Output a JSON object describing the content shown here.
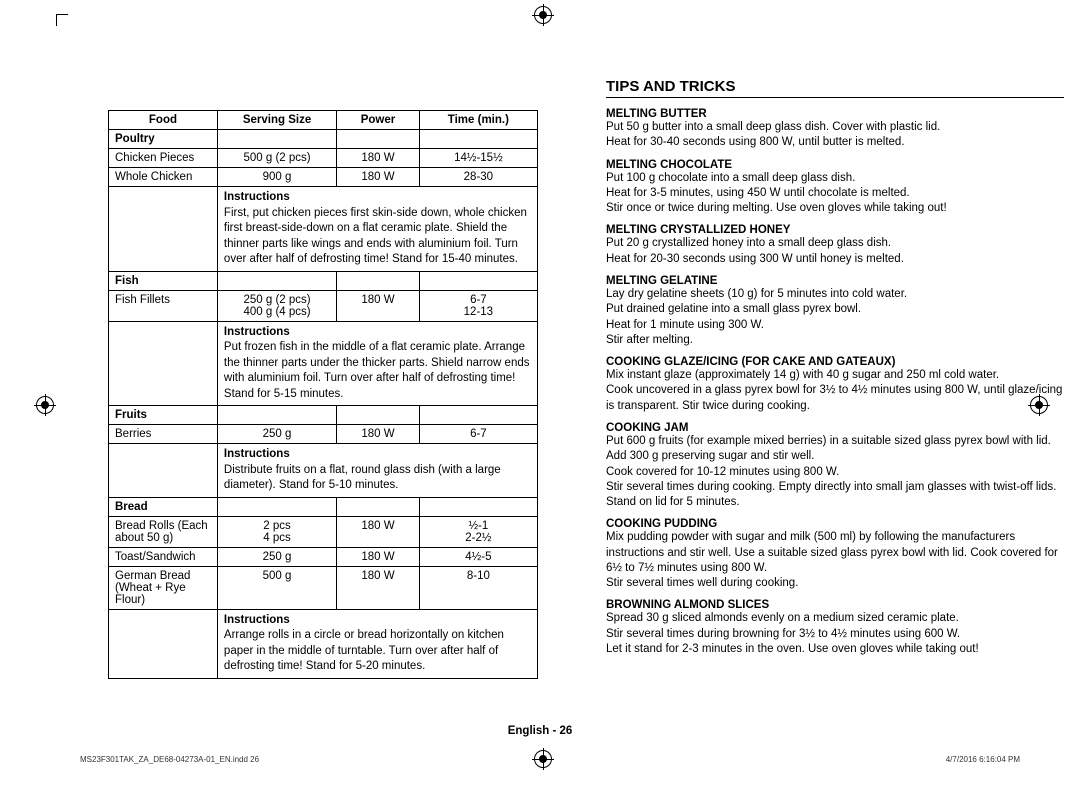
{
  "table": {
    "headers": [
      "Food",
      "Serving Size",
      "Power",
      "Time (min.)"
    ],
    "sections": [
      {
        "category": "Poultry",
        "rows": [
          {
            "food": "Chicken Pieces",
            "size": "500 g (2 pcs)",
            "power": "180 W",
            "time": "14½-15½"
          },
          {
            "food": "Whole Chicken",
            "size": "900 g",
            "power": "180 W",
            "time": "28-30"
          }
        ],
        "instructions_label": "Instructions",
        "instructions": "First, put chicken pieces first skin-side down, whole chicken first breast-side-down on a flat ceramic plate. Shield the thinner parts like wings and ends with aluminium foil. Turn over after half of defrosting time! Stand for 15-40 minutes."
      },
      {
        "category": "Fish",
        "rows": [
          {
            "food": "Fish Fillets",
            "size": "250 g (2 pcs)\n400 g (4 pcs)",
            "power": "180 W",
            "time": "6-7\n12-13"
          }
        ],
        "instructions_label": "Instructions",
        "instructions": "Put frozen fish in the middle of a flat ceramic plate. Arrange the thinner parts under the thicker parts. Shield narrow ends with aluminium foil. Turn over after half of defrosting time! Stand for 5-15 minutes."
      },
      {
        "category": "Fruits",
        "rows": [
          {
            "food": "Berries",
            "size": "250 g",
            "power": "180 W",
            "time": "6-7"
          }
        ],
        "instructions_label": "Instructions",
        "instructions": "Distribute fruits on a flat, round glass dish (with a large diameter). Stand for 5-10 minutes."
      },
      {
        "category": "Bread",
        "rows": [
          {
            "food": "Bread Rolls (Each about 50 g)",
            "size": "2 pcs\n4 pcs",
            "power": "180 W",
            "time": "½-1\n2-2½"
          },
          {
            "food": "Toast/Sandwich",
            "size": "250 g",
            "power": "180 W",
            "time": "4½-5"
          },
          {
            "food": "German Bread (Wheat + Rye Flour)",
            "size": "500 g",
            "power": "180 W",
            "time": "8-10",
            "food_rowspan_into_instr": true
          }
        ],
        "instructions_label": "Instructions",
        "instructions": "Arrange rolls in a circle or bread horizontally on kitchen paper in the middle of turntable. Turn over after half of defrosting time! Stand for 5-20 minutes."
      }
    ]
  },
  "tips_heading": "TIPS AND TRICKS",
  "tips": [
    {
      "title": "MELTING BUTTER",
      "body": "Put 50 g butter into a small deep glass dish. Cover with plastic lid.\nHeat for 30-40 seconds using 800 W, until butter is melted."
    },
    {
      "title": "MELTING CHOCOLATE",
      "body": "Put 100 g chocolate into a small deep glass dish.\nHeat for 3-5 minutes, using 450 W until chocolate is melted.\nStir once or twice during melting. Use oven gloves while taking out!"
    },
    {
      "title": "MELTING CRYSTALLIZED HONEY",
      "body": "Put 20 g crystallized honey into a small deep glass dish.\nHeat for 20-30 seconds using 300 W until honey is melted."
    },
    {
      "title": "MELTING GELATINE",
      "body": "Lay dry gelatine sheets (10 g) for 5 minutes into cold water.\nPut drained gelatine into a small glass pyrex bowl.\nHeat for 1 minute using 300 W.\nStir after melting."
    },
    {
      "title": "COOKING GLAZE/ICING (FOR CAKE AND GATEAUX)",
      "body": "Mix instant glaze (approximately 14 g) with 40 g sugar and 250 ml cold water.\nCook uncovered in a glass pyrex bowl for 3½ to 4½ minutes using 800 W, until glaze/icing is transparent. Stir twice during cooking."
    },
    {
      "title": "COOKING JAM",
      "body": "Put 600 g fruits (for example mixed berries) in a suitable sized glass pyrex bowl with lid. Add 300 g preserving sugar and stir well.\nCook covered for 10-12 minutes using 800 W.\nStir several times during cooking. Empty directly into small jam glasses with twist-off lids. Stand on lid for 5 minutes."
    },
    {
      "title": "COOKING PUDDING",
      "body": "Mix pudding powder with sugar and milk (500 ml) by following the manufacturers instructions and stir well. Use a suitable sized glass pyrex bowl with lid. Cook covered for 6½ to 7½ minutes using 800 W.\nStir several times well during cooking."
    },
    {
      "title": "BROWNING ALMOND SLICES",
      "body": "Spread 30 g sliced almonds evenly on a medium sized ceramic plate.\nStir several times during browning for 3½ to 4½ minutes using 600 W.\nLet it stand for 2-3 minutes in the oven. Use oven gloves while taking out!"
    }
  ],
  "footer": {
    "center": "English - 26",
    "left": "MS23F301TAK_ZA_DE68-04273A-01_EN.indd   26",
    "right": "4/7/2016   6:16:04 PM"
  }
}
